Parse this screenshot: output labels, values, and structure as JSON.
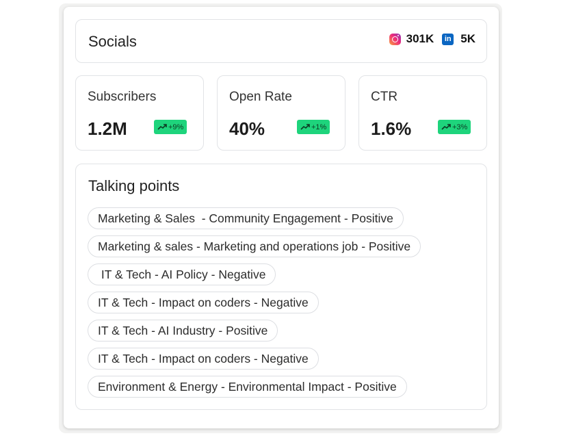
{
  "socials": {
    "title": "Socials",
    "instagram_icon": "instagram-icon",
    "instagram_count": "301K",
    "linkedin_icon": "linkedin-icon",
    "linkedin_glyph": "in",
    "linkedin_count": "5K"
  },
  "metrics": [
    {
      "label": "Subscribers",
      "value": "1.2M",
      "change": "+9%"
    },
    {
      "label": "Open Rate",
      "value": "40%",
      "change": "+1%"
    },
    {
      "label": "CTR",
      "value": "1.6%",
      "change": "+3%"
    }
  ],
  "colors": {
    "badge_bg": "#1ed47c",
    "badge_text": "#0c3b24"
  },
  "talking_points": {
    "title": "Talking points",
    "items": [
      "Marketing & Sales  - Community Engagement - Positive",
      "Marketing & sales - Marketing and operations job - Positive",
      " IT & Tech - AI Policy - Negative",
      "IT & Tech - Impact on coders - Negative",
      "IT & Tech - AI Industry - Positive",
      "IT & Tech - Impact on coders - Negative",
      "Environment & Energy - Environmental Impact - Positive"
    ]
  }
}
